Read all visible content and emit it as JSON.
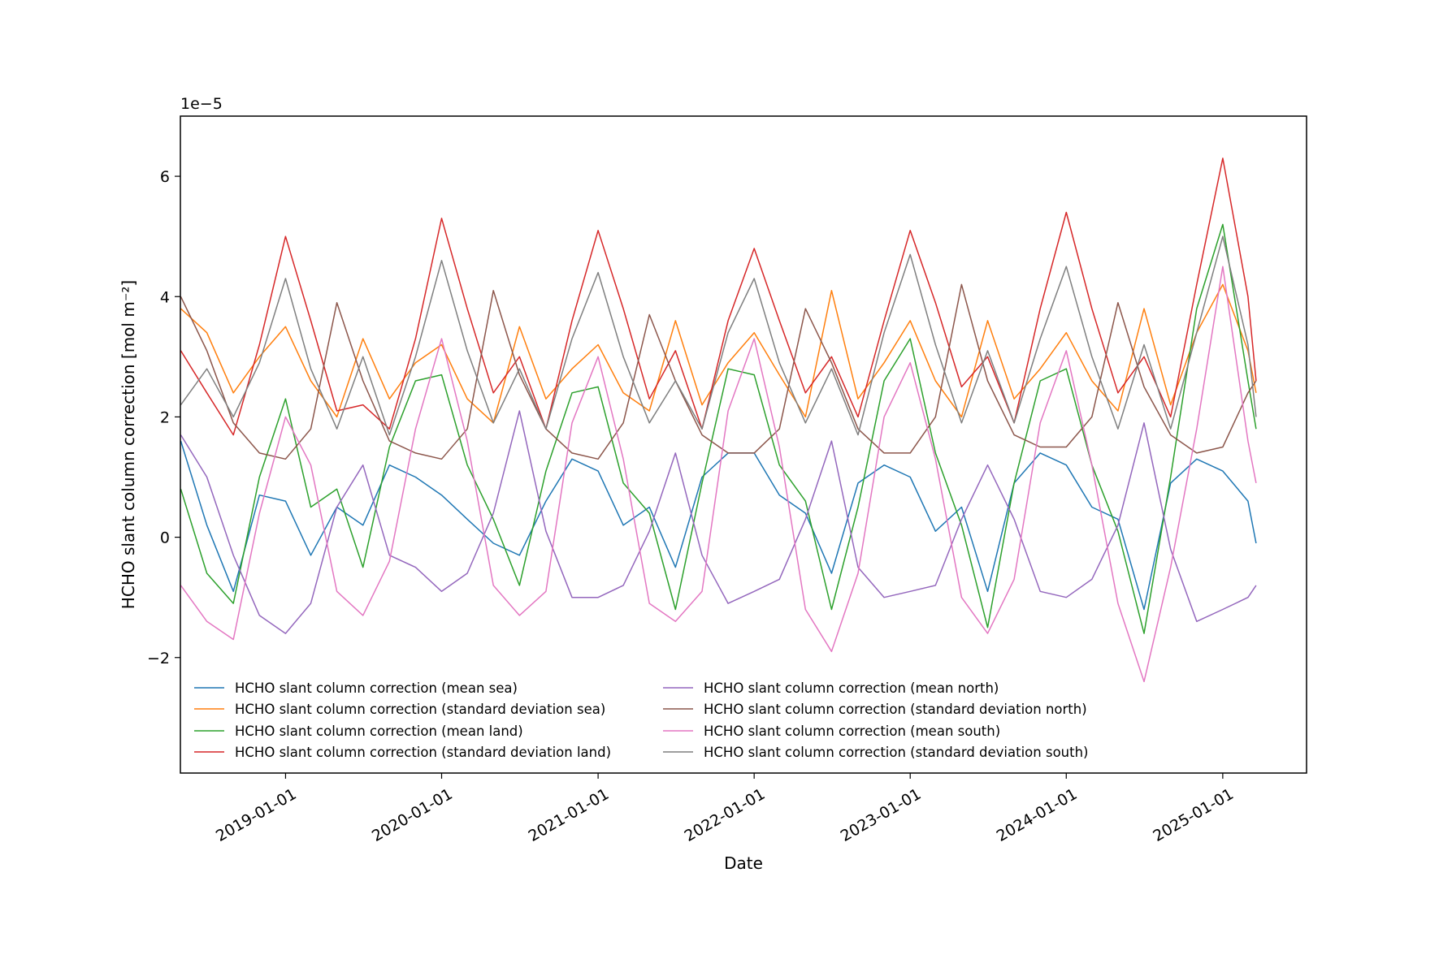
{
  "chart_data": {
    "type": "line",
    "title": "",
    "xlabel": "Date",
    "ylabel": "HCHO slant column correction [mol m⁻²]",
    "y_offset_label": "1e−5",
    "x_is_date": true,
    "xlim": [
      "2018-04-30",
      "2025-07-16"
    ],
    "ylim": [
      -3.92,
      7.0
    ],
    "x_ticks": [
      "2019-01-01",
      "2020-01-01",
      "2021-01-01",
      "2022-01-01",
      "2023-01-01",
      "2024-01-01",
      "2025-01-01"
    ],
    "y_ticks": [
      -2,
      0,
      2,
      4,
      6
    ],
    "y_tick_labels": [
      "−2",
      "0",
      "2",
      "4",
      "6"
    ],
    "grid": false,
    "legend_position": "lower-left",
    "legend_columns": 2,
    "series": [
      {
        "name": "HCHO slant column correction (mean sea)",
        "color": "#1f77b4",
        "x": [
          "2018-05-01",
          "2018-07-01",
          "2018-09-01",
          "2018-11-01",
          "2019-01-01",
          "2019-03-01",
          "2019-05-01",
          "2019-07-01",
          "2019-09-01",
          "2019-11-01",
          "2020-01-01",
          "2020-03-01",
          "2020-05-01",
          "2020-07-01",
          "2020-09-01",
          "2020-11-01",
          "2021-01-01",
          "2021-03-01",
          "2021-05-01",
          "2021-07-01",
          "2021-09-01",
          "2021-11-01",
          "2022-01-01",
          "2022-03-01",
          "2022-05-01",
          "2022-07-01",
          "2022-09-01",
          "2022-11-01",
          "2023-01-01",
          "2023-03-01",
          "2023-05-01",
          "2023-07-01",
          "2023-09-01",
          "2023-11-01",
          "2024-01-01",
          "2024-03-01",
          "2024-05-01",
          "2024-07-01",
          "2024-09-01",
          "2024-11-01",
          "2025-01-01",
          "2025-03-01",
          "2025-03-20"
        ],
        "y": [
          1.6,
          0.2,
          -0.9,
          0.7,
          0.6,
          -0.3,
          0.5,
          0.2,
          1.2,
          1.0,
          0.7,
          0.3,
          -0.1,
          -0.3,
          0.6,
          1.3,
          1.1,
          0.2,
          0.5,
          -0.5,
          1.0,
          1.4,
          1.4,
          0.7,
          0.4,
          -0.6,
          0.9,
          1.2,
          1.0,
          0.1,
          0.5,
          -0.9,
          0.9,
          1.4,
          1.2,
          0.5,
          0.3,
          -1.2,
          0.9,
          1.3,
          1.1,
          0.6,
          -0.1
        ]
      },
      {
        "name": "HCHO slant column correction (standard deviation sea)",
        "color": "#ff7f0e",
        "x": [
          "2018-05-01",
          "2018-07-01",
          "2018-09-01",
          "2018-11-01",
          "2019-01-01",
          "2019-03-01",
          "2019-05-01",
          "2019-07-01",
          "2019-09-01",
          "2019-11-01",
          "2020-01-01",
          "2020-03-01",
          "2020-05-01",
          "2020-07-01",
          "2020-09-01",
          "2020-11-01",
          "2021-01-01",
          "2021-03-01",
          "2021-05-01",
          "2021-07-01",
          "2021-09-01",
          "2021-11-01",
          "2022-01-01",
          "2022-03-01",
          "2022-05-01",
          "2022-07-01",
          "2022-09-01",
          "2022-11-01",
          "2023-01-01",
          "2023-03-01",
          "2023-05-01",
          "2023-07-01",
          "2023-09-01",
          "2023-11-01",
          "2024-01-01",
          "2024-03-01",
          "2024-05-01",
          "2024-07-01",
          "2024-09-01",
          "2024-11-01",
          "2025-01-01",
          "2025-03-01",
          "2025-03-20"
        ],
        "y": [
          3.8,
          3.4,
          2.4,
          3.0,
          3.5,
          2.6,
          2.0,
          3.3,
          2.3,
          2.9,
          3.2,
          2.3,
          1.9,
          3.5,
          2.3,
          2.8,
          3.2,
          2.4,
          2.1,
          3.6,
          2.2,
          2.9,
          3.4,
          2.7,
          2.0,
          4.1,
          2.3,
          2.9,
          3.6,
          2.6,
          2.0,
          3.6,
          2.3,
          2.8,
          3.4,
          2.6,
          2.1,
          3.8,
          2.2,
          3.4,
          4.2,
          3.1,
          2.4
        ]
      },
      {
        "name": "HCHO slant column correction (mean land)",
        "color": "#2ca02c",
        "x": [
          "2018-05-01",
          "2018-07-01",
          "2018-09-01",
          "2018-11-01",
          "2019-01-01",
          "2019-03-01",
          "2019-05-01",
          "2019-07-01",
          "2019-09-01",
          "2019-11-01",
          "2020-01-01",
          "2020-03-01",
          "2020-05-01",
          "2020-07-01",
          "2020-09-01",
          "2020-11-01",
          "2021-01-01",
          "2021-03-01",
          "2021-05-01",
          "2021-07-01",
          "2021-09-01",
          "2021-11-01",
          "2022-01-01",
          "2022-03-01",
          "2022-05-01",
          "2022-07-01",
          "2022-09-01",
          "2022-11-01",
          "2023-01-01",
          "2023-03-01",
          "2023-05-01",
          "2023-07-01",
          "2023-09-01",
          "2023-11-01",
          "2024-01-01",
          "2024-03-01",
          "2024-05-01",
          "2024-07-01",
          "2024-09-01",
          "2024-11-01",
          "2025-01-01",
          "2025-03-01",
          "2025-03-20"
        ],
        "y": [
          0.8,
          -0.6,
          -1.1,
          1.0,
          2.3,
          0.5,
          0.8,
          -0.5,
          1.5,
          2.6,
          2.7,
          1.2,
          0.3,
          -0.8,
          1.1,
          2.4,
          2.5,
          0.9,
          0.4,
          -1.2,
          0.9,
          2.8,
          2.7,
          1.2,
          0.6,
          -1.2,
          0.5,
          2.6,
          3.3,
          1.4,
          0.2,
          -1.5,
          0.9,
          2.6,
          2.8,
          1.2,
          0.1,
          -1.6,
          1.0,
          3.8,
          5.2,
          2.6,
          1.8
        ]
      },
      {
        "name": "HCHO slant column correction (standard deviation land)",
        "color": "#d62728",
        "x": [
          "2018-05-01",
          "2018-07-01",
          "2018-09-01",
          "2018-11-01",
          "2019-01-01",
          "2019-03-01",
          "2019-05-01",
          "2019-07-01",
          "2019-09-01",
          "2019-11-01",
          "2020-01-01",
          "2020-03-01",
          "2020-05-01",
          "2020-07-01",
          "2020-09-01",
          "2020-11-01",
          "2021-01-01",
          "2021-03-01",
          "2021-05-01",
          "2021-07-01",
          "2021-09-01",
          "2021-11-01",
          "2022-01-01",
          "2022-03-01",
          "2022-05-01",
          "2022-07-01",
          "2022-09-01",
          "2022-11-01",
          "2023-01-01",
          "2023-03-01",
          "2023-05-01",
          "2023-07-01",
          "2023-09-01",
          "2023-11-01",
          "2024-01-01",
          "2024-03-01",
          "2024-05-01",
          "2024-07-01",
          "2024-09-01",
          "2024-11-01",
          "2025-01-01",
          "2025-03-01",
          "2025-03-20"
        ],
        "y": [
          3.1,
          2.4,
          1.7,
          3.2,
          5.0,
          3.6,
          2.1,
          2.2,
          1.8,
          3.3,
          5.3,
          3.8,
          2.4,
          3.0,
          1.8,
          3.6,
          5.1,
          3.8,
          2.3,
          3.1,
          1.8,
          3.6,
          4.8,
          3.6,
          2.4,
          3.0,
          2.0,
          3.6,
          5.1,
          3.9,
          2.5,
          3.0,
          1.9,
          3.8,
          5.4,
          3.8,
          2.4,
          3.0,
          2.0,
          4.2,
          6.3,
          4.0,
          2.6
        ]
      },
      {
        "name": "HCHO slant column correction (mean north)",
        "color": "#9467bd",
        "x": [
          "2018-05-01",
          "2018-07-01",
          "2018-09-01",
          "2018-11-01",
          "2019-01-01",
          "2019-03-01",
          "2019-05-01",
          "2019-07-01",
          "2019-09-01",
          "2019-11-01",
          "2020-01-01",
          "2020-03-01",
          "2020-05-01",
          "2020-07-01",
          "2020-09-01",
          "2020-11-01",
          "2021-01-01",
          "2021-03-01",
          "2021-05-01",
          "2021-07-01",
          "2021-09-01",
          "2021-11-01",
          "2022-01-01",
          "2022-03-01",
          "2022-05-01",
          "2022-07-01",
          "2022-09-01",
          "2022-11-01",
          "2023-01-01",
          "2023-03-01",
          "2023-05-01",
          "2023-07-01",
          "2023-09-01",
          "2023-11-01",
          "2024-01-01",
          "2024-03-01",
          "2024-05-01",
          "2024-07-01",
          "2024-09-01",
          "2024-11-01",
          "2025-01-01",
          "2025-03-01",
          "2025-03-20"
        ],
        "y": [
          1.7,
          1.0,
          -0.3,
          -1.3,
          -1.6,
          -1.1,
          0.5,
          1.2,
          -0.3,
          -0.5,
          -0.9,
          -0.6,
          0.4,
          2.1,
          0.1,
          -1.0,
          -1.0,
          -0.8,
          0.1,
          1.4,
          -0.3,
          -1.1,
          -0.9,
          -0.7,
          0.3,
          1.6,
          -0.5,
          -1.0,
          -0.9,
          -0.8,
          0.3,
          1.2,
          0.3,
          -0.9,
          -1.0,
          -0.7,
          0.2,
          1.9,
          -0.2,
          -1.4,
          -1.2,
          -1.0,
          -0.8
        ]
      },
      {
        "name": "HCHO slant column correction (standard deviation north)",
        "color": "#8c564b",
        "x": [
          "2018-05-01",
          "2018-07-01",
          "2018-09-01",
          "2018-11-01",
          "2019-01-01",
          "2019-03-01",
          "2019-05-01",
          "2019-07-01",
          "2019-09-01",
          "2019-11-01",
          "2020-01-01",
          "2020-03-01",
          "2020-05-01",
          "2020-07-01",
          "2020-09-01",
          "2020-11-01",
          "2021-01-01",
          "2021-03-01",
          "2021-05-01",
          "2021-07-01",
          "2021-09-01",
          "2021-11-01",
          "2022-01-01",
          "2022-03-01",
          "2022-05-01",
          "2022-07-01",
          "2022-09-01",
          "2022-11-01",
          "2023-01-01",
          "2023-03-01",
          "2023-05-01",
          "2023-07-01",
          "2023-09-01",
          "2023-11-01",
          "2024-01-01",
          "2024-03-01",
          "2024-05-01",
          "2024-07-01",
          "2024-09-01",
          "2024-11-01",
          "2025-01-01",
          "2025-03-01",
          "2025-03-20"
        ],
        "y": [
          4.0,
          3.1,
          1.9,
          1.4,
          1.3,
          1.8,
          3.9,
          2.6,
          1.6,
          1.4,
          1.3,
          1.8,
          4.1,
          2.7,
          1.8,
          1.4,
          1.3,
          1.9,
          3.7,
          2.6,
          1.7,
          1.4,
          1.4,
          1.8,
          3.8,
          2.9,
          1.8,
          1.4,
          1.4,
          2.0,
          4.2,
          2.6,
          1.7,
          1.5,
          1.5,
          2.0,
          3.9,
          2.5,
          1.7,
          1.4,
          1.5,
          2.4,
          2.6
        ]
      },
      {
        "name": "HCHO slant column correction (mean south)",
        "color": "#e377c2",
        "x": [
          "2018-05-01",
          "2018-07-01",
          "2018-09-01",
          "2018-11-01",
          "2019-01-01",
          "2019-03-01",
          "2019-05-01",
          "2019-07-01",
          "2019-09-01",
          "2019-11-01",
          "2020-01-01",
          "2020-03-01",
          "2020-05-01",
          "2020-07-01",
          "2020-09-01",
          "2020-11-01",
          "2021-01-01",
          "2021-03-01",
          "2021-05-01",
          "2021-07-01",
          "2021-09-01",
          "2021-11-01",
          "2022-01-01",
          "2022-03-01",
          "2022-05-01",
          "2022-07-01",
          "2022-09-01",
          "2022-11-01",
          "2023-01-01",
          "2023-03-01",
          "2023-05-01",
          "2023-07-01",
          "2023-09-01",
          "2023-11-01",
          "2024-01-01",
          "2024-03-01",
          "2024-05-01",
          "2024-07-01",
          "2024-09-01",
          "2024-11-01",
          "2025-01-01",
          "2025-03-01",
          "2025-03-20"
        ],
        "y": [
          -0.8,
          -1.4,
          -1.7,
          0.4,
          2.0,
          1.2,
          -0.9,
          -1.3,
          -0.4,
          1.8,
          3.3,
          1.6,
          -0.8,
          -1.3,
          -0.9,
          1.9,
          3.0,
          1.3,
          -1.1,
          -1.4,
          -0.9,
          2.1,
          3.3,
          1.5,
          -1.2,
          -1.9,
          -0.6,
          2.0,
          2.9,
          1.3,
          -1.0,
          -1.6,
          -0.7,
          1.9,
          3.1,
          1.2,
          -1.1,
          -2.4,
          -0.5,
          1.8,
          4.5,
          1.6,
          0.9
        ]
      },
      {
        "name": "HCHO slant column correction (standard deviation south)",
        "color": "#7f7f7f",
        "x": [
          "2018-05-01",
          "2018-07-01",
          "2018-09-01",
          "2018-11-01",
          "2019-01-01",
          "2019-03-01",
          "2019-05-01",
          "2019-07-01",
          "2019-09-01",
          "2019-11-01",
          "2020-01-01",
          "2020-03-01",
          "2020-05-01",
          "2020-07-01",
          "2020-09-01",
          "2020-11-01",
          "2021-01-01",
          "2021-03-01",
          "2021-05-01",
          "2021-07-01",
          "2021-09-01",
          "2021-11-01",
          "2022-01-01",
          "2022-03-01",
          "2022-05-01",
          "2022-07-01",
          "2022-09-01",
          "2022-11-01",
          "2023-01-01",
          "2023-03-01",
          "2023-05-01",
          "2023-07-01",
          "2023-09-01",
          "2023-11-01",
          "2024-01-01",
          "2024-03-01",
          "2024-05-01",
          "2024-07-01",
          "2024-09-01",
          "2024-11-01",
          "2025-01-01",
          "2025-03-01",
          "2025-03-20"
        ],
        "y": [
          2.2,
          2.8,
          2.0,
          2.9,
          4.3,
          2.8,
          1.8,
          3.0,
          1.7,
          3.0,
          4.6,
          3.1,
          1.9,
          2.8,
          1.8,
          3.3,
          4.4,
          3.0,
          1.9,
          2.6,
          1.8,
          3.4,
          4.3,
          2.9,
          1.9,
          2.8,
          1.7,
          3.4,
          4.7,
          3.2,
          1.9,
          3.1,
          1.9,
          3.3,
          4.5,
          3.0,
          1.8,
          3.2,
          1.8,
          3.4,
          5.0,
          3.2,
          2.0
        ]
      }
    ]
  }
}
